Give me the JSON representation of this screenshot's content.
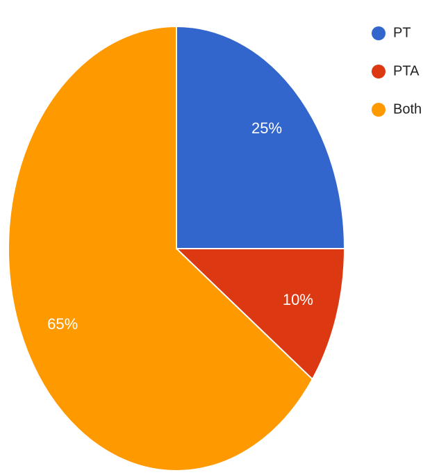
{
  "chart_data": {
    "type": "pie",
    "categories": [
      "PT",
      "PTA",
      "Both"
    ],
    "values": [
      25,
      10,
      65
    ],
    "value_labels": [
      "25%",
      "10%",
      "65%"
    ],
    "colors": [
      "#3366cc",
      "#dc3912",
      "#ff9900"
    ],
    "legend": "right"
  }
}
